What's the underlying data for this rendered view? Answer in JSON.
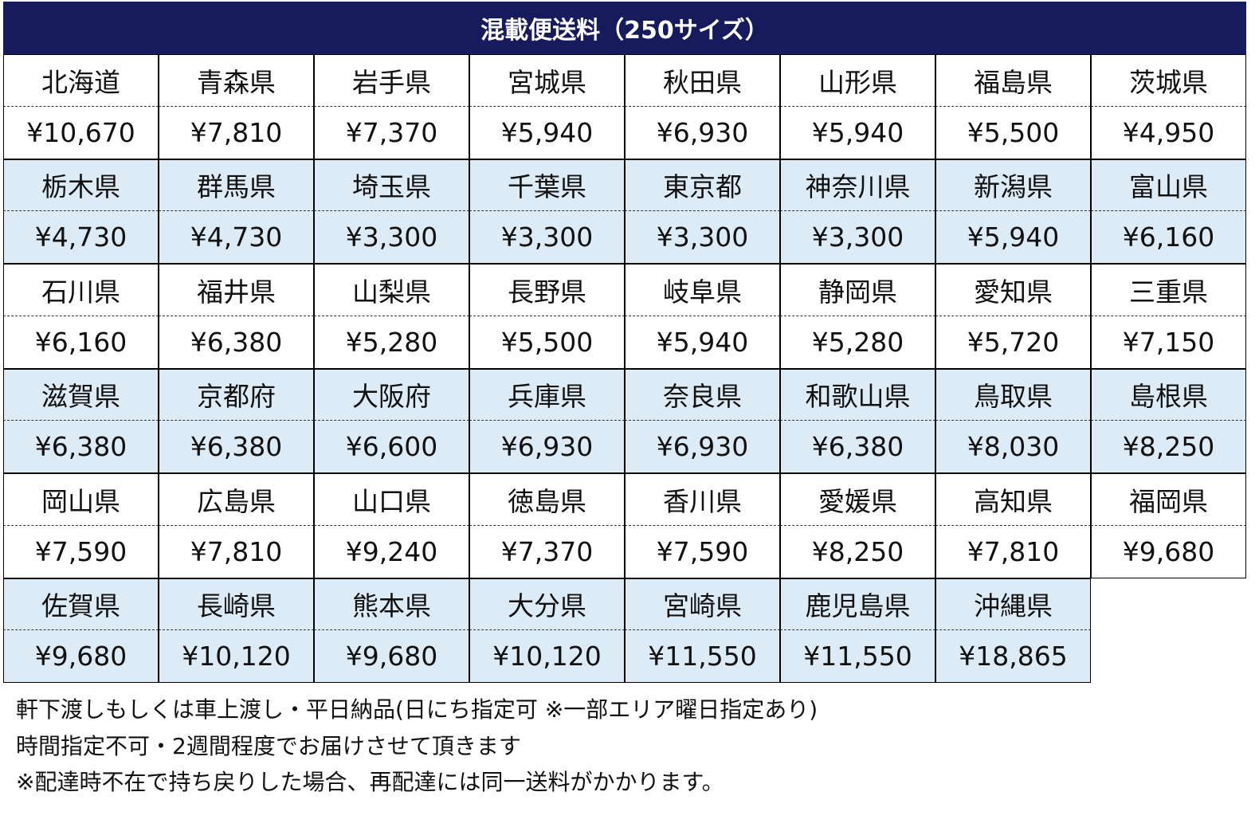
{
  "title": "混載便送料（250サイズ）",
  "colors": {
    "header_bg": "#171a5c",
    "alt_row_bg": "#ddebf7"
  },
  "groups": [
    {
      "names": [
        "北海道",
        "青森県",
        "岩手県",
        "宮城県",
        "秋田県",
        "山形県",
        "福島県",
        "茨城県"
      ],
      "prices": [
        "¥10,670",
        "¥7,810",
        "¥7,370",
        "¥5,940",
        "¥6,930",
        "¥5,940",
        "¥5,500",
        "¥4,950"
      ]
    },
    {
      "names": [
        "栃木県",
        "群馬県",
        "埼玉県",
        "千葉県",
        "東京都",
        "神奈川県",
        "新潟県",
        "富山県"
      ],
      "prices": [
        "¥4,730",
        "¥4,730",
        "¥3,300",
        "¥3,300",
        "¥3,300",
        "¥3,300",
        "¥5,940",
        "¥6,160"
      ]
    },
    {
      "names": [
        "石川県",
        "福井県",
        "山梨県",
        "長野県",
        "岐阜県",
        "静岡県",
        "愛知県",
        "三重県"
      ],
      "prices": [
        "¥6,160",
        "¥6,380",
        "¥5,280",
        "¥5,500",
        "¥5,940",
        "¥5,280",
        "¥5,720",
        "¥7,150"
      ]
    },
    {
      "names": [
        "滋賀県",
        "京都府",
        "大阪府",
        "兵庫県",
        "奈良県",
        "和歌山県",
        "鳥取県",
        "島根県"
      ],
      "prices": [
        "¥6,380",
        "¥6,380",
        "¥6,600",
        "¥6,930",
        "¥6,930",
        "¥6,380",
        "¥8,030",
        "¥8,250"
      ]
    },
    {
      "names": [
        "岡山県",
        "広島県",
        "山口県",
        "徳島県",
        "香川県",
        "愛媛県",
        "高知県",
        "福岡県"
      ],
      "prices": [
        "¥7,590",
        "¥7,810",
        "¥9,240",
        "¥7,370",
        "¥7,590",
        "¥8,250",
        "¥7,810",
        "¥9,680"
      ]
    },
    {
      "names": [
        "佐賀県",
        "長崎県",
        "熊本県",
        "大分県",
        "宮崎県",
        "鹿児島県",
        "沖縄県"
      ],
      "prices": [
        "¥9,680",
        "¥10,120",
        "¥9,680",
        "¥10,120",
        "¥11,550",
        "¥11,550",
        "¥18,865"
      ]
    }
  ],
  "notes": [
    "軒下渡しもしくは車上渡し・平日納品(日にち指定可 ※一部エリア曜日指定あり)",
    "時間指定不可・2週間程度でお届けさせて頂きます",
    "※配達時不在で持ち戻りした場合、再配達には同一送料がかかります。"
  ]
}
